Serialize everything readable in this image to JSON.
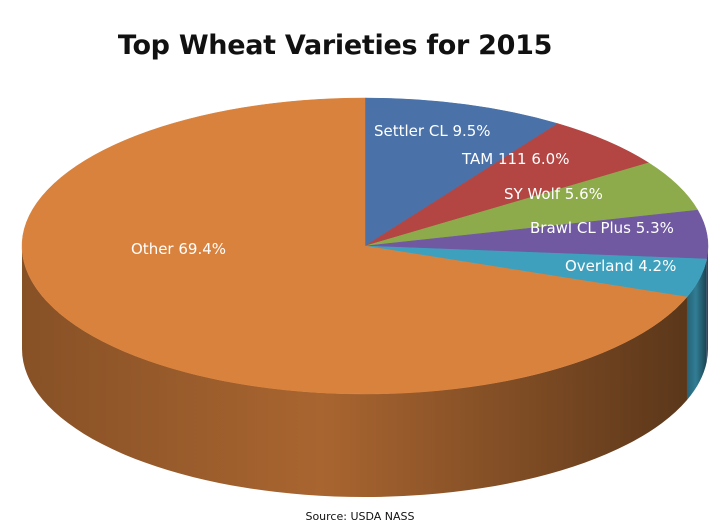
{
  "chart_data": {
    "type": "pie",
    "title": "Top Wheat Varieties for 2015",
    "source": "Source: USDA NASS",
    "three_d": true,
    "slices": [
      {
        "label": "Settler CL",
        "value": 9.5,
        "display": "Settler CL 9.5%",
        "color": "#4a72a8"
      },
      {
        "label": "TAM 111",
        "value": 6.0,
        "display": "TAM 111  6.0%",
        "color": "#b34643"
      },
      {
        "label": "SY Wolf",
        "value": 5.6,
        "display": "SY Wolf 5.6%",
        "color": "#8eab4c"
      },
      {
        "label": "Brawl CL Plus",
        "value": 5.3,
        "display": "Brawl CL Plus 5.3%",
        "color": "#7059a0"
      },
      {
        "label": "Overland",
        "value": 4.2,
        "display": "Overland 4.2%",
        "color": "#3fa0be"
      },
      {
        "label": "Other",
        "value": 69.4,
        "display": "Other 69.4%",
        "color": "#d9823e"
      }
    ]
  }
}
